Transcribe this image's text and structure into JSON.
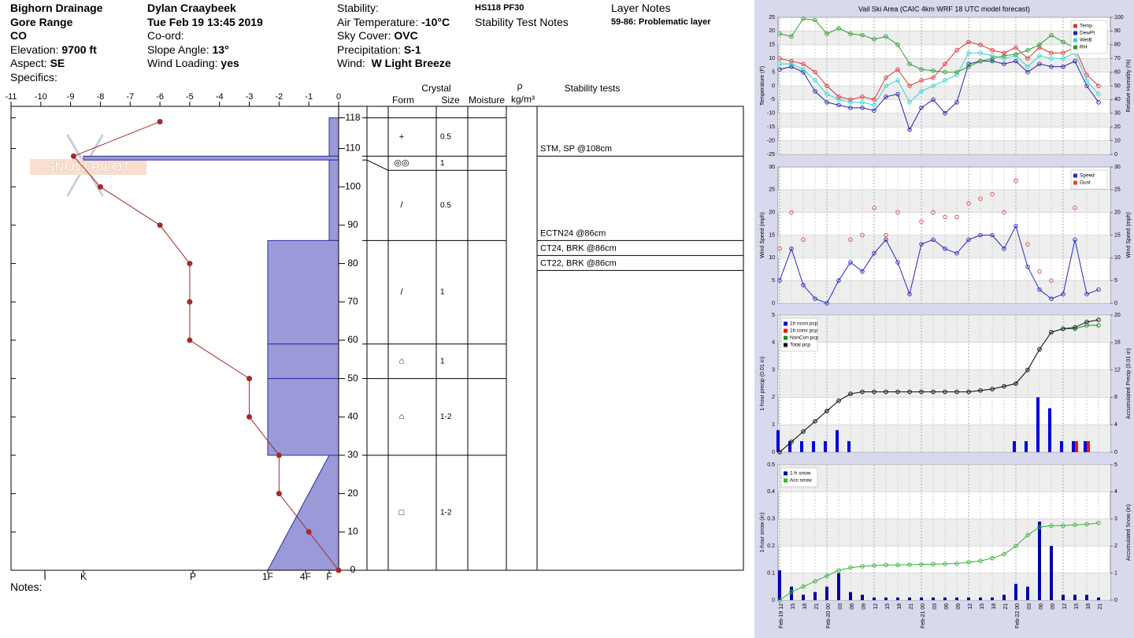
{
  "header": {
    "location": [
      "Bighorn Drainage",
      "Gore Range",
      "CO"
    ],
    "elevation": {
      "label": "Elevation:",
      "value": "9700 ft"
    },
    "aspect": {
      "label": "Aspect:",
      "value": "SE"
    },
    "specifics": {
      "label": "Specifics:"
    },
    "observer": "Dylan Craaybeek",
    "datetime": "Tue Feb 19 13:45 2019",
    "coord": {
      "label": "Co-ord:"
    },
    "slope_angle": {
      "label": "Slope Angle:",
      "value": "13°"
    },
    "wind_loading": {
      "label": "Wind Loading:",
      "value": "yes"
    },
    "stability": {
      "label": "Stability:"
    },
    "air_temperature": {
      "label": "Air Temperature:",
      "value": "-10°C"
    },
    "sky_cover": {
      "label": "Sky Cover:",
      "value": "OVC"
    },
    "precipitation": {
      "label": "Precipitation:",
      "value": "S-1"
    },
    "wind": {
      "label": "Wind:",
      "value": "W Light Breeze"
    },
    "summary": "HS118 PF30",
    "stability_test_notes": "Stability Test Notes",
    "layer_notes_title": "Layer Notes",
    "layer_notes": [
      "59-86: Problematic layer"
    ],
    "notes": "Notes:",
    "logo": "SNOW PILOT"
  },
  "chart_data": [
    {
      "type": "snowpit",
      "temperature_profile": {
        "color": "#a52a2a",
        "temperature": [
          -6,
          -8.9,
          -8,
          -6,
          -5,
          -5,
          -5,
          -3,
          -3,
          -2,
          -2,
          -1,
          0
        ],
        "height": [
          117,
          108,
          100,
          90,
          80,
          70,
          60,
          50,
          40,
          30,
          20,
          10,
          0
        ]
      },
      "xlim": [
        -11,
        0
      ],
      "xticks": [
        -11,
        -10,
        -9,
        -8,
        -7,
        -6,
        -5,
        -4,
        -3,
        -2,
        -1,
        0
      ],
      "ylim": [
        0,
        121
      ],
      "yticks": [
        0,
        10,
        20,
        30,
        40,
        50,
        60,
        70,
        80,
        90,
        100,
        110,
        118
      ],
      "hardness_ticks": [
        {
          "value": 6,
          "label": "I"
        },
        {
          "value": 5,
          "label": "K"
        },
        {
          "value": 4,
          "label": "P"
        },
        {
          "value": 3,
          "label": "1F"
        },
        {
          "value": 2,
          "label": "4F"
        },
        {
          "value": 1,
          "label": "F"
        }
      ],
      "hardness_color": "#9a9ad8",
      "layers": [
        {
          "top": 118,
          "bottom": 108,
          "hardness_top": 1,
          "hardness_bottom": 1,
          "form": "+",
          "size": "0.5"
        },
        {
          "top": 108,
          "bottom": 107,
          "hardness_top": 5,
          "hardness_bottom": 5,
          "form": "◎◎",
          "size": "1"
        },
        {
          "top": 107,
          "bottom": 86,
          "hardness_top": 1,
          "hardness_bottom": 1,
          "form": "/",
          "size": "0.5"
        },
        {
          "top": 86,
          "bottom": 59,
          "hardness_top": 3,
          "hardness_bottom": 3,
          "form": "/",
          "size": "1"
        },
        {
          "top": 59,
          "bottom": 50,
          "hardness_top": 3,
          "hardness_bottom": 3,
          "form": "⌂",
          "size": "1"
        },
        {
          "top": 50,
          "bottom": 30,
          "hardness_top": 3,
          "hardness_bottom": 3,
          "form": "⌂",
          "size": "1-2"
        },
        {
          "top": 30,
          "bottom": 0,
          "hardness_top": 1,
          "hardness_bottom": 3,
          "form": "□",
          "size": "1-2"
        }
      ],
      "column_headers": {
        "crystal": "Crystal",
        "form": "Form",
        "size": "Size",
        "moisture": "Moisture",
        "density": "ρ",
        "density_unit": "kg/m³",
        "stability_tests": "Stability tests"
      },
      "stability_tests": [
        {
          "text": "STM, SP @108cm",
          "depth": 108
        },
        {
          "text": "ECTN24 @86cm",
          "depth": 86
        },
        {
          "text": "CT24, BRK @86cm",
          "depth": 86
        },
        {
          "text": "CT22, BRK @86cm",
          "depth": 86
        }
      ]
    },
    {
      "type": "weather",
      "title": "Vail Ski Area (CAIC 4km WRF 18 UTC model forecast)",
      "ylabel": "Temperature (F)",
      "y2label": "Relative Humidity (%)",
      "ylim": [
        -25,
        25
      ],
      "yticks": [
        -25,
        -20,
        -15,
        -10,
        -5,
        0,
        5,
        10,
        15,
        20,
        25
      ],
      "y2lim": [
        0,
        100
      ],
      "y2ticks": [
        0,
        10,
        20,
        30,
        40,
        50,
        60,
        70,
        80,
        90,
        100
      ],
      "legend": "upper right",
      "series": [
        {
          "name": "Temp",
          "color": "#e03434",
          "mark": "line",
          "values": [
            10,
            9,
            8,
            5,
            0,
            -4,
            -5,
            -4,
            -5,
            3,
            6,
            0,
            2,
            3,
            8,
            13,
            16,
            15,
            13,
            12,
            14,
            10,
            14,
            12,
            12,
            14,
            4,
            0
          ]
        },
        {
          "name": "DewPt",
          "color": "#2424a8",
          "mark": "line",
          "values": [
            6,
            7,
            5,
            -2,
            -6,
            -7,
            -8,
            -8,
            -9,
            -4,
            -3,
            -16,
            -8,
            -5,
            -10,
            -6,
            8,
            9,
            9,
            8,
            9,
            5,
            8,
            7,
            7,
            9,
            0,
            -6
          ]
        },
        {
          "name": "WetB",
          "color": "#30d4d4",
          "mark": "line",
          "values": [
            8,
            8,
            6,
            2,
            -3,
            -5,
            -6,
            -6,
            -7,
            0,
            2,
            -6,
            -2,
            0,
            2,
            4,
            12,
            12,
            11,
            10,
            11,
            7,
            11,
            10,
            10,
            12,
            2,
            -3
          ]
        },
        {
          "name": "RH",
          "color": "#2e9a2e",
          "mark": "line",
          "axis": "y2",
          "values": [
            88,
            86,
            99,
            98,
            88,
            92,
            88,
            87,
            84,
            86,
            80,
            66,
            62,
            61,
            60,
            60,
            64,
            68,
            70,
            72,
            73,
            76,
            80,
            87,
            82,
            78,
            80,
            85
          ]
        }
      ]
    },
    {
      "type": "weather",
      "ylabel": "Wind Speed (mph)",
      "y2label": "Wind Speed (mph)",
      "ylim": [
        0,
        30
      ],
      "yticks": [
        0,
        5,
        10,
        15,
        20,
        25,
        30
      ],
      "y2lim": [
        0,
        30
      ],
      "y2ticks": [
        0,
        5,
        10,
        15,
        20,
        25,
        30
      ],
      "legend": "upper right",
      "series": [
        {
          "name": "Speed",
          "color": "#2828c8",
          "mark": "line",
          "values": [
            5,
            12,
            4,
            1,
            0,
            5,
            9,
            7,
            11,
            14,
            9,
            2,
            13,
            14,
            12,
            11,
            14,
            15,
            15,
            12,
            17,
            8,
            3,
            1,
            2,
            14,
            2,
            3
          ]
        },
        {
          "name": "Gust",
          "color": "#e04848",
          "mark": "points",
          "values": [
            12,
            20,
            14,
            null,
            null,
            null,
            14,
            15,
            21,
            15,
            20,
            null,
            18,
            20,
            19,
            19,
            22,
            23,
            24,
            20,
            27,
            13,
            7,
            5,
            null,
            21,
            null,
            null
          ]
        }
      ]
    },
    {
      "type": "weather",
      "ylabel": "1-hour precip (0.01 in)",
      "y2label": "Accumulated Precip (0.01 in)",
      "ylim": [
        0,
        5
      ],
      "yticks": [
        0,
        1,
        2,
        3,
        4,
        5
      ],
      "y2lim": [
        0,
        20
      ],
      "y2ticks": [
        0,
        4,
        8,
        12,
        16,
        20
      ],
      "legend": "upper left",
      "series": [
        {
          "name": "1h ncon pcp",
          "color": "#0000dd",
          "mark": "bars",
          "values": [
            0.8,
            0.4,
            0.4,
            0.4,
            0.4,
            0.8,
            0.4,
            0,
            0,
            0,
            0,
            0,
            0,
            0,
            0,
            0,
            0,
            0,
            0,
            0,
            0.4,
            0.4,
            2,
            1.6,
            0.4,
            0.4,
            0.4,
            0
          ]
        },
        {
          "name": "1h conv pcp",
          "color": "#ee1111",
          "mark": "bars",
          "values": [
            0,
            0,
            0,
            0,
            0,
            0,
            0,
            0,
            0,
            0,
            0,
            0,
            0,
            0,
            0,
            0,
            0,
            0,
            0,
            0,
            0,
            0,
            0,
            0,
            0,
            0.4,
            0.4,
            0
          ]
        },
        {
          "name": "NonCon pcp",
          "color": "#208a20",
          "mark": "line",
          "axis": "y2",
          "values": [
            0,
            1.5,
            3,
            4.5,
            6,
            7.5,
            8.5,
            8.8,
            8.8,
            8.8,
            8.8,
            8.8,
            8.8,
            8.8,
            8.8,
            8.8,
            8.8,
            9,
            9.2,
            9.6,
            10,
            12,
            15,
            17.5,
            18,
            18,
            18.5,
            18.5
          ]
        },
        {
          "name": "Total pcp",
          "color": "#111111",
          "mark": "line",
          "axis": "y2",
          "values": [
            0,
            1.5,
            3,
            4.5,
            6,
            7.5,
            8.5,
            8.8,
            8.8,
            8.8,
            8.8,
            8.8,
            8.8,
            8.8,
            8.8,
            8.8,
            8.8,
            9,
            9.2,
            9.6,
            10,
            12,
            15,
            17.5,
            18,
            18.2,
            19,
            19.3
          ]
        }
      ]
    },
    {
      "type": "weather",
      "ylabel": "1-hour snow (in)",
      "y2label": "Accumulated Snow (in)",
      "ylim": [
        0,
        0.5
      ],
      "yticks": [
        0,
        0.1,
        0.2,
        0.3,
        0.4,
        0.5
      ],
      "y2lim": [
        0,
        5
      ],
      "y2ticks": [
        0,
        1,
        2,
        3,
        4,
        5
      ],
      "legend": "upper left",
      "categories": [
        "Feb-19 12",
        "15",
        "18",
        "21",
        "Feb-20 00",
        "03",
        "06",
        "09",
        "12",
        "15",
        "18",
        "21",
        "Feb-21 00",
        "03",
        "06",
        "09",
        "12",
        "15",
        "18",
        "21",
        "Feb-22 00",
        "03",
        "06",
        "09",
        "12",
        "15",
        "18",
        "21"
      ],
      "series": [
        {
          "name": "1-h snow",
          "color": "#0000aa",
          "mark": "bars",
          "values": [
            0.11,
            0.05,
            0.02,
            0.03,
            0.05,
            0.1,
            0.03,
            0.02,
            0.01,
            0.01,
            0.01,
            0.01,
            0.01,
            0.01,
            0.01,
            0.01,
            0.01,
            0.01,
            0.01,
            0.02,
            0.06,
            0.05,
            0.29,
            0.2,
            0.02,
            0.02,
            0.02,
            0.01
          ]
        },
        {
          "name": "Acc snow",
          "color": "#36b236",
          "mark": "line",
          "axis": "y2",
          "values": [
            0,
            0.3,
            0.5,
            0.7,
            0.9,
            1.1,
            1.2,
            1.25,
            1.28,
            1.3,
            1.3,
            1.31,
            1.32,
            1.33,
            1.34,
            1.35,
            1.4,
            1.45,
            1.55,
            1.7,
            2,
            2.4,
            2.7,
            2.75,
            2.75,
            2.78,
            2.8,
            2.85
          ]
        }
      ]
    }
  ]
}
